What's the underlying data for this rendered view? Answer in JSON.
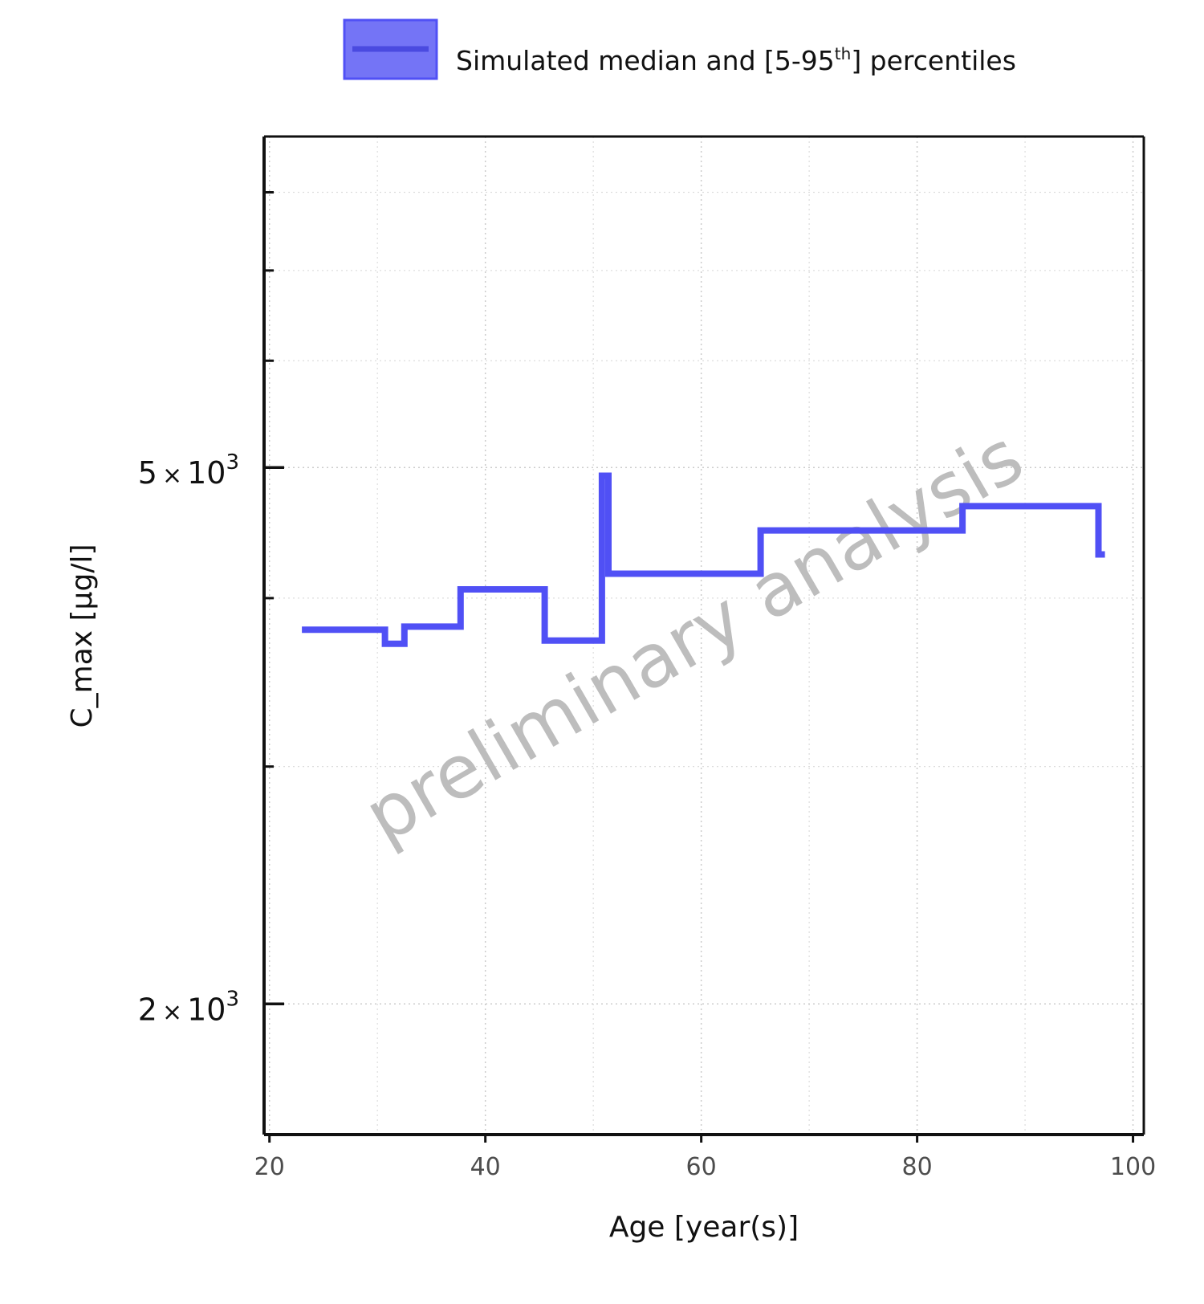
{
  "chart_data": {
    "type": "line",
    "legend": {
      "label_main": "Simulated median and [5-95",
      "label_sup": "th",
      "label_end": "] percentiles",
      "placement": "top-center"
    },
    "watermark": "preliminary analysis",
    "xlabel": "Age [year(s)]",
    "ylabel": "C_max [µg/l]",
    "xlim": [
      19.5,
      101
    ],
    "ylim": [
      1600,
      8800
    ],
    "y_scale": "log",
    "grid": true,
    "x_ticks": [
      {
        "value": 20,
        "label": "20"
      },
      {
        "value": 40,
        "label": "40"
      },
      {
        "value": 60,
        "label": "60"
      },
      {
        "value": 80,
        "label": "80"
      },
      {
        "value": 100,
        "label": "100"
      }
    ],
    "x_minor_ticks": [
      30,
      50,
      70,
      90
    ],
    "y_major_ticks": [
      {
        "value": 2000,
        "mantissa": "2",
        "times": "×",
        "base": "10",
        "exponent": "3"
      },
      {
        "value": 5000,
        "mantissa": "5",
        "times": "×",
        "base": "10",
        "exponent": "3"
      }
    ],
    "y_minor_ticks": [
      3000,
      4000,
      6000,
      7000,
      8000
    ],
    "series": [
      {
        "name": "Simulated median",
        "color": "#5050f5",
        "step": "post",
        "x": [
          23,
          30.7,
          32.5,
          37.7,
          45.5,
          50.8,
          51.4,
          65.5,
          84.2,
          96.8,
          97.4
        ],
        "y": [
          3790,
          3700,
          3810,
          4060,
          3720,
          4930,
          4170,
          4490,
          4680,
          4310,
          4310
        ]
      }
    ],
    "colors": {
      "series_line": "#5050f5",
      "legend_fill": "#7474f6",
      "legend_border": "#5050f5",
      "axis": "#111111",
      "grid": "#cccccc",
      "watermark": "#bdbdbd"
    }
  }
}
